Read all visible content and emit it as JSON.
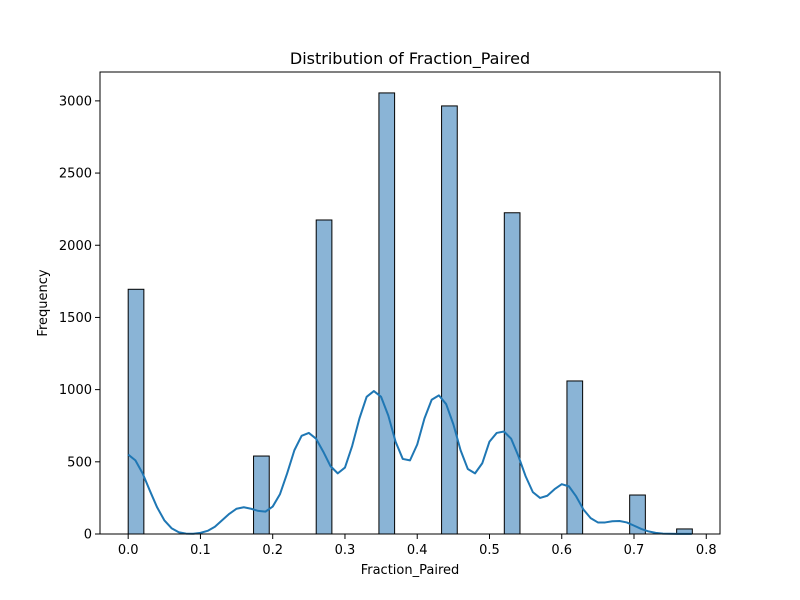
{
  "chart_data": {
    "type": "bar",
    "title": "Distribution of Fraction_Paired",
    "xlabel": "Fraction_Paired",
    "ylabel": "Frequency",
    "xlim": [
      -0.039,
      0.819
    ],
    "ylim": [
      0,
      3200
    ],
    "xticks": [
      0.0,
      0.1,
      0.2,
      0.3,
      0.4,
      0.5,
      0.6,
      0.7,
      0.8
    ],
    "xtick_labels": [
      "0.0",
      "0.1",
      "0.2",
      "0.3",
      "0.4",
      "0.5",
      "0.6",
      "0.7",
      "0.8"
    ],
    "yticks": [
      0,
      500,
      1000,
      1500,
      2000,
      2500,
      3000
    ],
    "ytick_labels": [
      "0",
      "500",
      "1000",
      "1500",
      "2000",
      "2500",
      "3000"
    ],
    "grid": false,
    "bin_width": 0.0217,
    "bars": [
      {
        "x_start": 0.0,
        "x_end": 0.0217,
        "value": 1695
      },
      {
        "x_start": 0.1735,
        "x_end": 0.1952,
        "value": 540
      },
      {
        "x_start": 0.2602,
        "x_end": 0.2819,
        "value": 2175
      },
      {
        "x_start": 0.347,
        "x_end": 0.3687,
        "value": 3055
      },
      {
        "x_start": 0.4337,
        "x_end": 0.4554,
        "value": 2965
      },
      {
        "x_start": 0.5205,
        "x_end": 0.5422,
        "value": 2225
      },
      {
        "x_start": 0.6072,
        "x_end": 0.6289,
        "value": 1060
      },
      {
        "x_start": 0.694,
        "x_end": 0.7157,
        "value": 270
      },
      {
        "x_start": 0.759,
        "x_end": 0.7807,
        "value": 35
      }
    ],
    "kde": {
      "x": [
        0.0,
        0.01,
        0.02,
        0.03,
        0.04,
        0.05,
        0.06,
        0.07,
        0.08,
        0.09,
        0.1,
        0.11,
        0.12,
        0.13,
        0.14,
        0.15,
        0.16,
        0.17,
        0.18,
        0.19,
        0.2,
        0.21,
        0.22,
        0.23,
        0.24,
        0.25,
        0.26,
        0.27,
        0.28,
        0.29,
        0.3,
        0.31,
        0.32,
        0.33,
        0.34,
        0.35,
        0.36,
        0.37,
        0.38,
        0.39,
        0.4,
        0.41,
        0.42,
        0.43,
        0.44,
        0.45,
        0.46,
        0.47,
        0.48,
        0.49,
        0.5,
        0.51,
        0.52,
        0.53,
        0.54,
        0.55,
        0.56,
        0.57,
        0.58,
        0.59,
        0.6,
        0.61,
        0.62,
        0.63,
        0.64,
        0.65,
        0.66,
        0.67,
        0.68,
        0.69,
        0.7,
        0.71,
        0.72,
        0.73,
        0.74,
        0.75,
        0.76,
        0.77,
        0.78
      ],
      "y": [
        550,
        510,
        420,
        300,
        185,
        95,
        40,
        12,
        3,
        2,
        8,
        22,
        50,
        95,
        140,
        175,
        185,
        175,
        160,
        155,
        190,
        275,
        420,
        580,
        680,
        700,
        660,
        570,
        470,
        420,
        460,
        610,
        800,
        950,
        990,
        950,
        820,
        640,
        520,
        510,
        620,
        800,
        930,
        960,
        900,
        760,
        580,
        450,
        420,
        490,
        640,
        700,
        710,
        660,
        540,
        400,
        290,
        250,
        265,
        310,
        345,
        330,
        260,
        170,
        110,
        80,
        80,
        88,
        90,
        80,
        58,
        35,
        18,
        8,
        3,
        2,
        1,
        1,
        1
      ]
    },
    "colors": {
      "bar_fill": "#8ab4d6",
      "bar_edge": "#000000",
      "kde_line": "#1f77b4"
    }
  }
}
